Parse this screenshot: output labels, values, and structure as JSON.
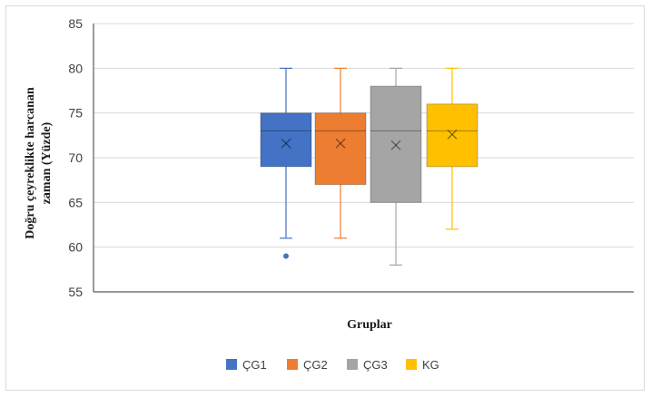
{
  "chart_data": {
    "type": "boxplot",
    "title": "",
    "xlabel": "Gruplar",
    "ylabel": "Doğru çeyreklikte harcanan zaman (Yüzde)",
    "ylabel_lines": [
      "Doğru çeyreklikte harcanan",
      "zaman (Yüzde)"
    ],
    "ylim": [
      55,
      85
    ],
    "yticks": [
      55,
      60,
      65,
      70,
      75,
      80,
      85
    ],
    "grid": true,
    "legend_position": "bottom",
    "series": [
      {
        "name": "ÇG1",
        "color": "#4472c4",
        "min": 61,
        "q1": 69,
        "median": 73,
        "q3": 75,
        "max": 80,
        "mean": 71.6,
        "outliers": [
          59
        ]
      },
      {
        "name": "ÇG2",
        "color": "#ed7d31",
        "min": 61,
        "q1": 67,
        "median": 73,
        "q3": 75,
        "max": 80,
        "mean": 71.6,
        "outliers": []
      },
      {
        "name": "ÇG3",
        "color": "#a5a5a5",
        "min": 58,
        "q1": 65,
        "median": 73,
        "q3": 78,
        "max": 80,
        "mean": 71.4,
        "outliers": []
      },
      {
        "name": "KG",
        "color": "#ffc000",
        "min": 62,
        "q1": 69,
        "median": 73,
        "q3": 76,
        "max": 80,
        "mean": 72.6,
        "outliers": []
      }
    ]
  }
}
